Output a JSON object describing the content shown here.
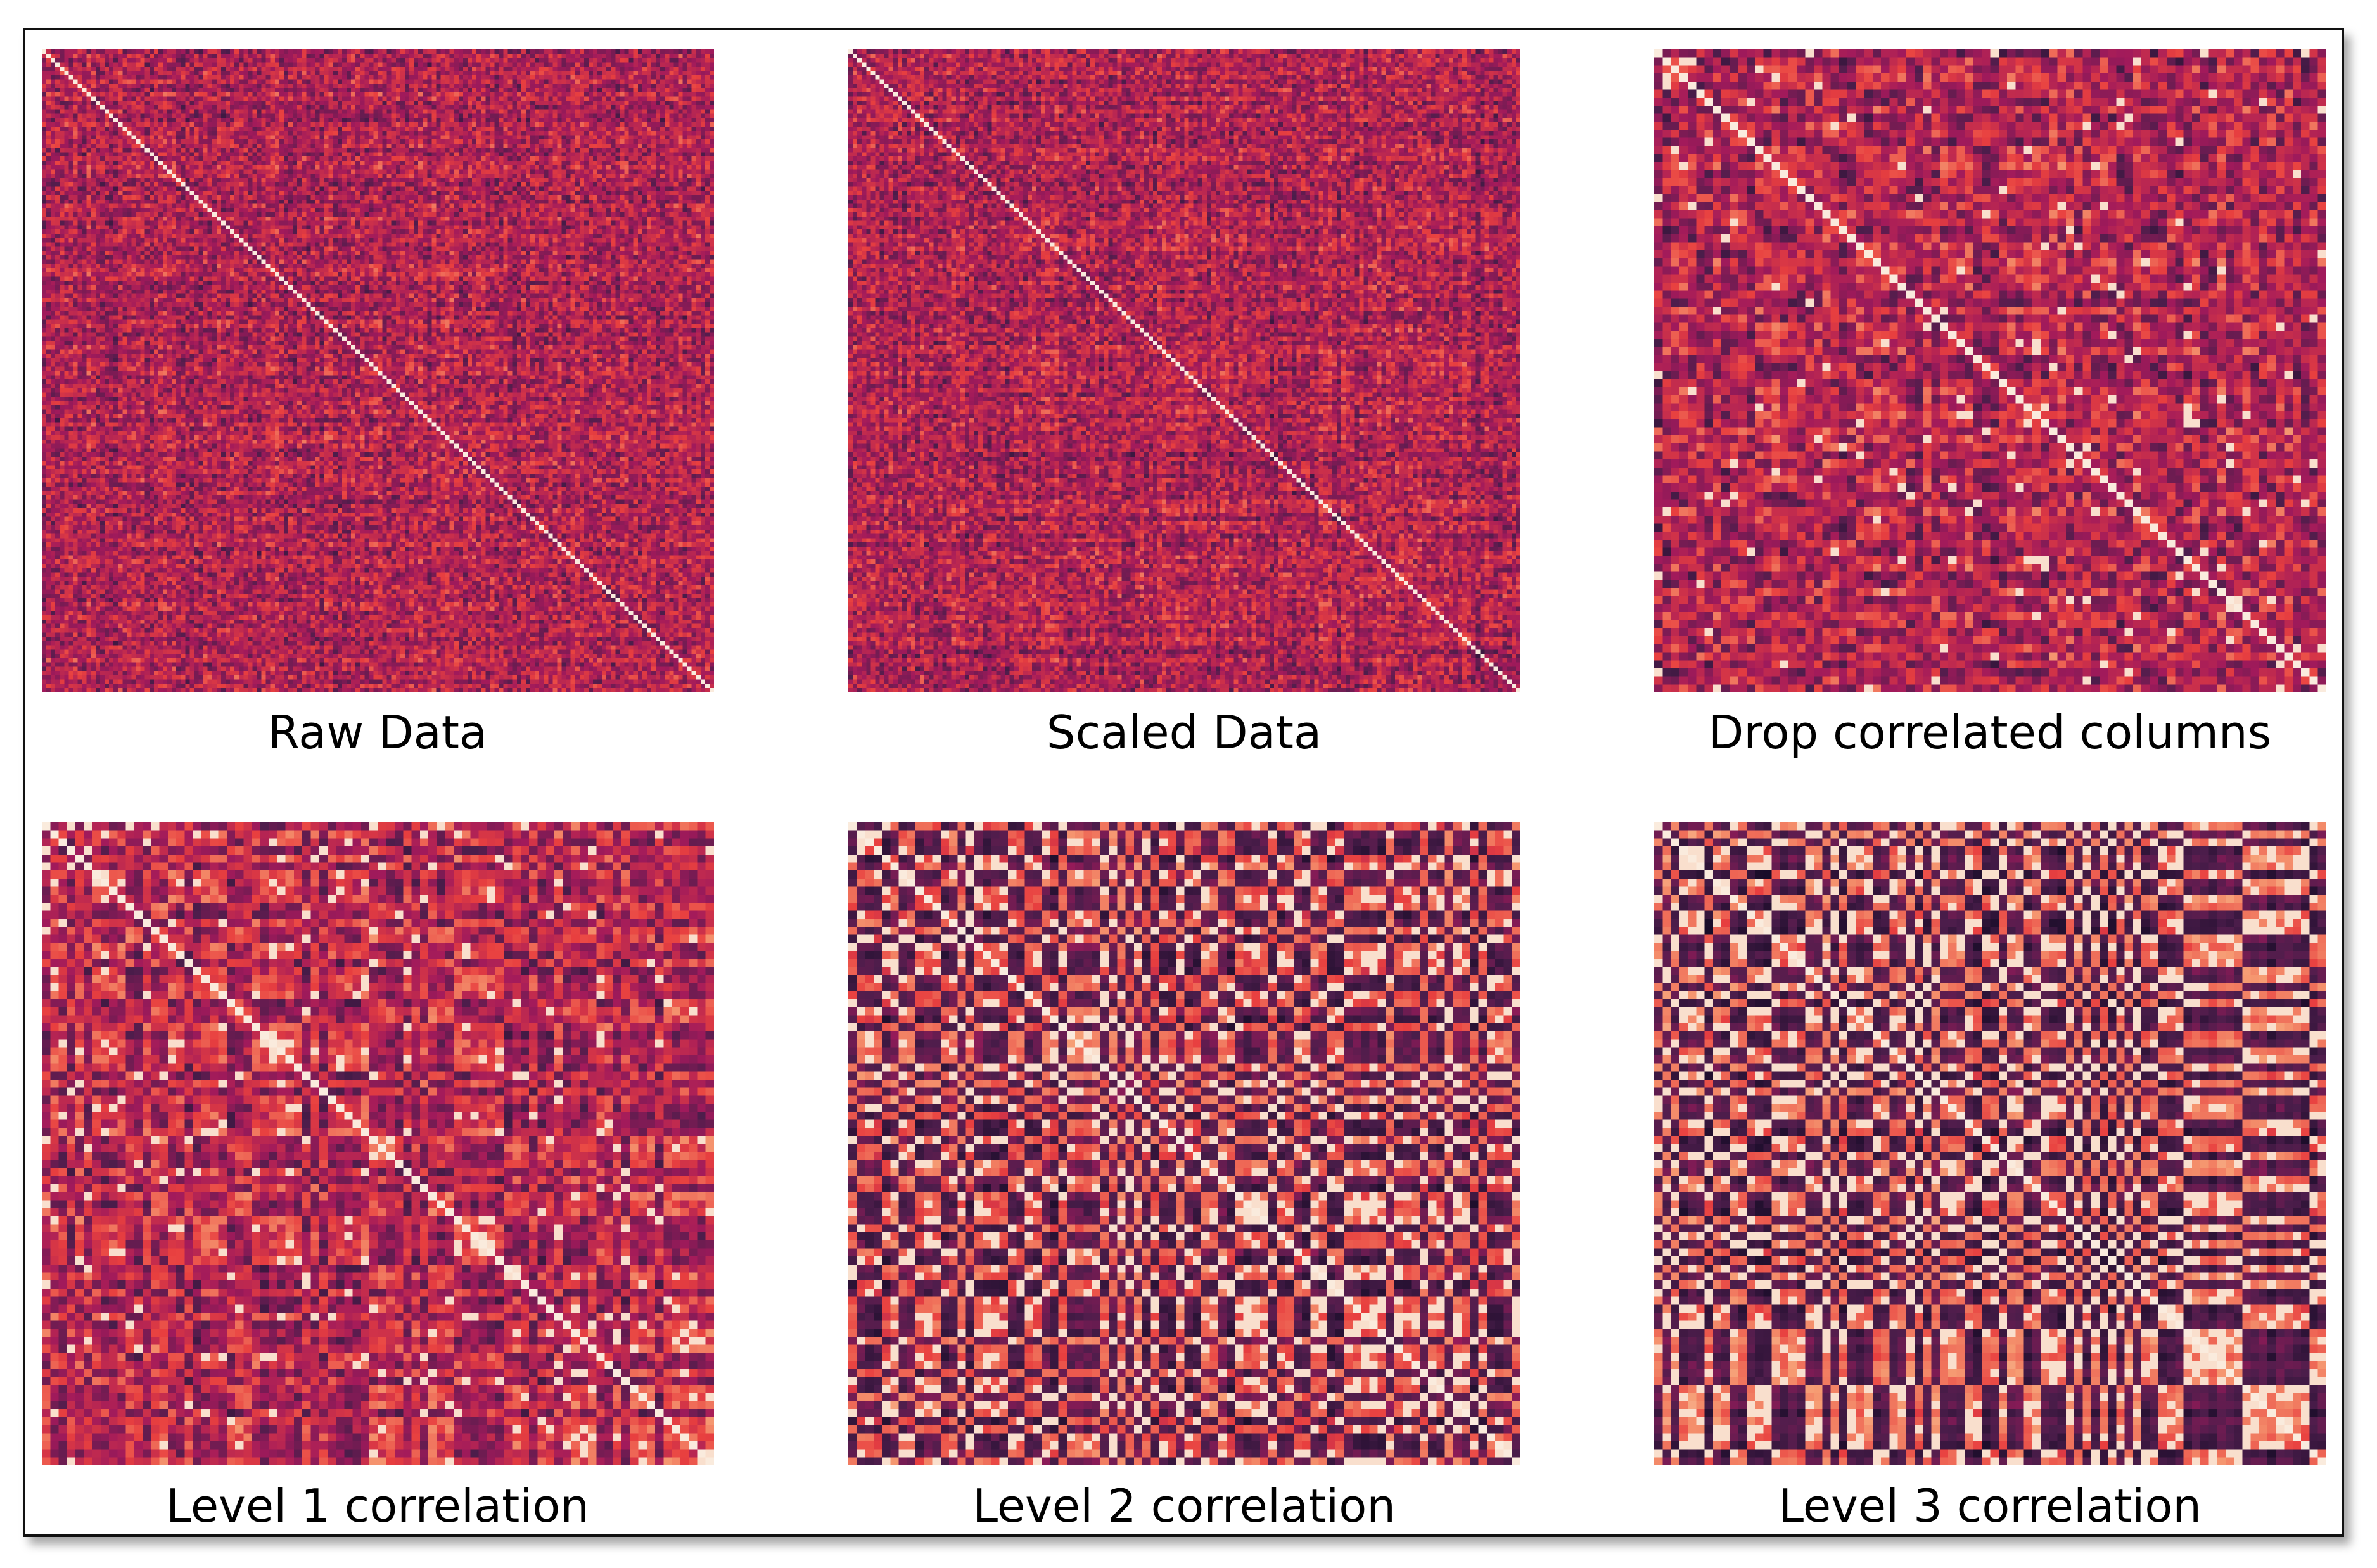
{
  "colors": {
    "cmap": [
      "#03051a",
      "#4c1d4b",
      "#a11a5b",
      "#e83f3f",
      "#f69c73",
      "#faebdd"
    ]
  },
  "chart_data": [
    {
      "type": "heatmap",
      "title": "Raw Data",
      "matrix_size": 150,
      "value_range": [
        -1,
        1
      ],
      "diagonal_value": 1,
      "colorbar": false,
      "tick_labels": false
    },
    {
      "type": "heatmap",
      "title": "Scaled Data",
      "matrix_size": 150,
      "value_range": [
        -1,
        1
      ],
      "diagonal_value": 1,
      "colorbar": false,
      "tick_labels": false
    },
    {
      "type": "heatmap",
      "title": "Drop correlated columns",
      "matrix_size": 80,
      "value_range": [
        -1,
        1
      ],
      "diagonal_value": 1,
      "colorbar": false,
      "tick_labels": false
    },
    {
      "type": "heatmap",
      "title": "Level 1 correlation",
      "matrix_size": 80,
      "value_range": [
        -1,
        1
      ],
      "diagonal_value": 1,
      "colorbar": false,
      "tick_labels": false
    },
    {
      "type": "heatmap",
      "title": "Level 2 correlation",
      "matrix_size": 80,
      "value_range": [
        -1,
        1
      ],
      "diagonal_value": 1,
      "colorbar": false,
      "tick_labels": false
    },
    {
      "type": "heatmap",
      "title": "Level 3 correlation",
      "matrix_size": 80,
      "value_range": [
        -1,
        1
      ],
      "diagonal_value": 1,
      "colorbar": false,
      "tick_labels": false
    }
  ]
}
